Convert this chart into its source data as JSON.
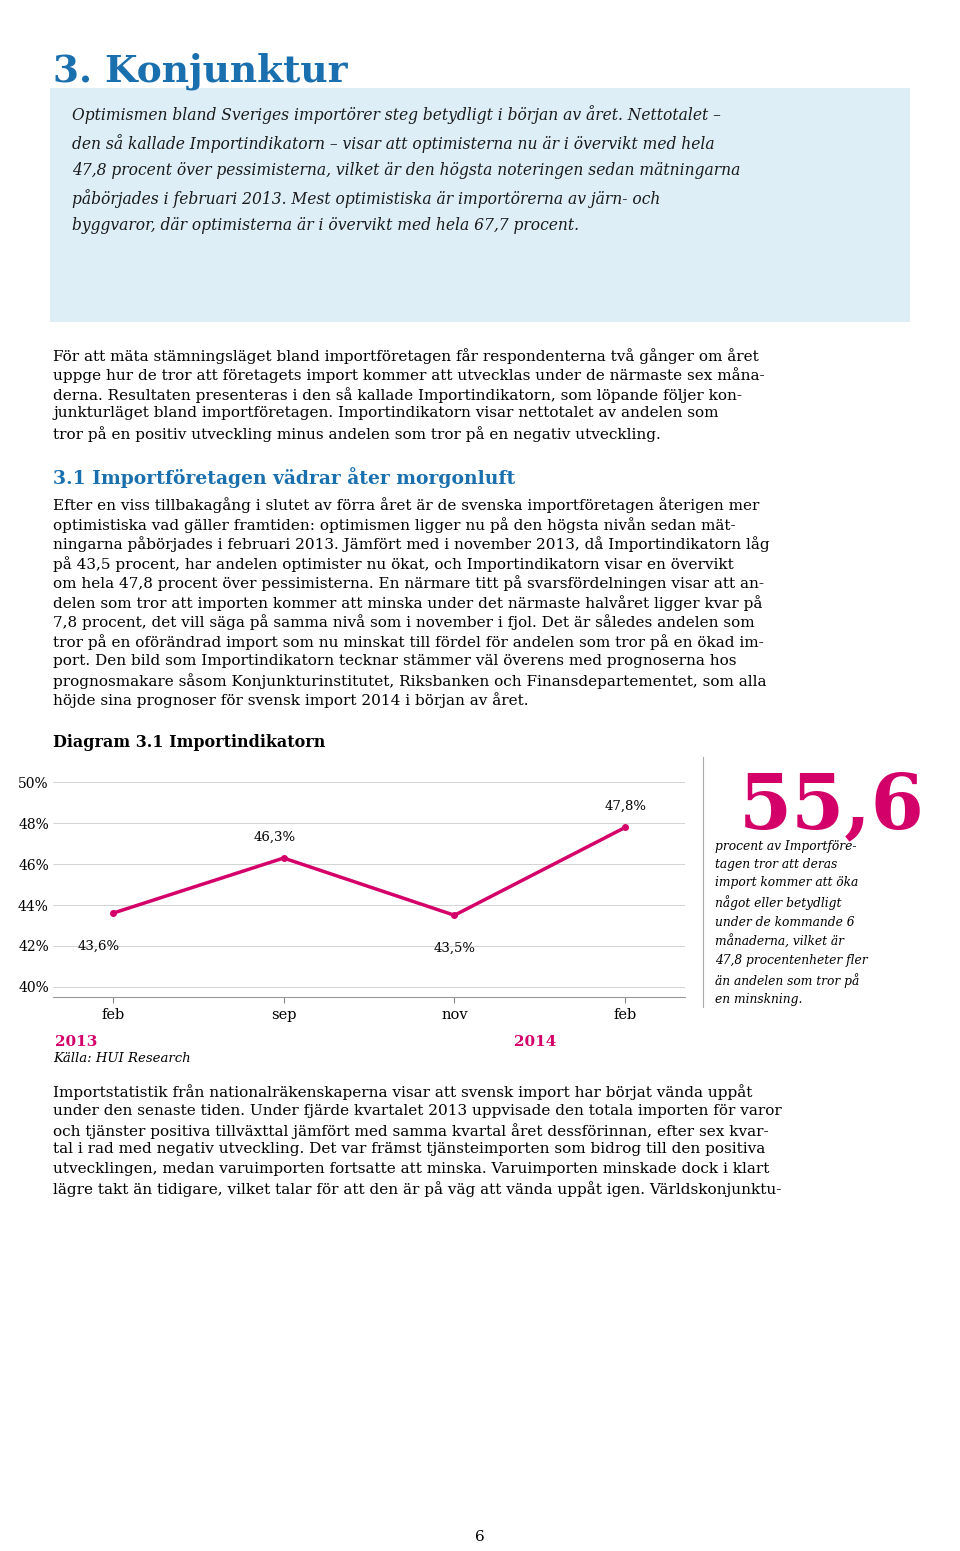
{
  "page_title": "3. Konjunktur",
  "page_title_color": "#1a6faf",
  "highlight_box_color": "#ddeef7",
  "highlight_text": "Optimismen bland Sveriges importörer steg betydligt i början av året. Nettotalet –\nden så kallade Importindikatorn – visar att optimisterna nu är i övervikt med hela\n47,8 procent över pessimisterna, vilket är den högsta noteringen sedan mätningarna\npåbörjades i februari 2013. Mest optimistiska är importörerna av järn- och\nbyggvaror, där optimisterna är i övervikt med hela 67,7 procent.",
  "body_text_1_lines": [
    "För att mäta stämningsläget bland importföretagen får respondenterna två gånger om året",
    "uppge hur de tror att företagets import kommer att utvecklas under de närmaste sex måna-",
    "derna. Resultaten presenteras i den så kallade Importindikatorn, som löpande följer kon-",
    "junkturläget bland importföretagen. Importindikatorn visar nettotalet av andelen som",
    "tror på en positiv utveckling minus andelen som tror på en negativ utveckling."
  ],
  "body_text_1_bold": [
    "Importindikatorn",
    "Importindikatorn"
  ],
  "section_title": "3.1 Importföretagen vädrar åter morgonluft",
  "section_title_color": "#1a6faf",
  "body_text_2_lines": [
    "Efter en viss tillbakagång i slutet av förra året är de svenska importföretagen återigen mer",
    "optimistiska vad gäller framtiden: optimismen ligger nu på den högsta nivån sedan mät-",
    "ningarna påbörjades i februari 2013. Jämfört med i november 2013, då Importindikatorn låg",
    "på 43,5 procent, har andelen optimister nu ökat, och Importindikatorn visar en övervikt",
    "om hela 47,8 procent över pessimisterna. En närmare titt på svarsfördelningen visar att an-",
    "delen som tror att importen kommer att minska under det närmaste halvåret ligger kvar på",
    "7,8 procent, det vill säga på samma nivå som i november i fjol. Det är således andelen som",
    "tror på en oförändrad import som nu minskat till fördel för andelen som tror på en ökad im-",
    "port. Den bild som Importindikatorn tecknar stämmer väl överens med prognoserna hos",
    "prognosmakare såsom Konjunkturinstitutet, Riksbanken och Finansdepartementet, som alla",
    "höjde sina prognoser för svensk import 2014 i början av året."
  ],
  "diagram_title": "Diagram 3.1 Importindikatorn",
  "x_labels": [
    "feb",
    "sep",
    "nov",
    "feb"
  ],
  "year_labels": [
    "2013",
    "2014"
  ],
  "year_label_color": "#d4006a",
  "y_values": [
    43.6,
    46.3,
    43.5,
    47.8
  ],
  "y_labels": [
    "40%",
    "42%",
    "44%",
    "46%",
    "48%",
    "50%"
  ],
  "y_ticks": [
    40,
    42,
    44,
    46,
    48,
    50
  ],
  "ylim": [
    39.5,
    51
  ],
  "line_color": "#d4006a",
  "data_labels": [
    "43,6%",
    "46,3%",
    "43,5%",
    "47,8%"
  ],
  "big_number": "55,6",
  "big_number_color": "#d4006a",
  "sidebar_text_lines": [
    "procent av Importföre-",
    "tagen tror att deras",
    "import kommer att öka",
    "något eller betydligt",
    "under de kommande 6",
    "månaderna, vilket är",
    "47,8 procentenheter fler",
    "än andelen som tror på",
    "en minskning."
  ],
  "source_text": "Källa: HUI Research",
  "body_text_3_lines": [
    "Importstatistik från nationalräkenskaperna visar att svensk import har börjat vända uppåt",
    "under den senaste tiden. Under fjärde kvartalet 2013 uppvisade den totala importen för varor",
    "och tjänster positiva tillväxttal jämfört med samma kvartal året dessförinnan, efter sex kvar-",
    "tal i rad med negativ utveckling. Det var främst tjänsteimporten som bidrog till den positiva",
    "utvecklingen, medan varuimporten fortsatte att minska. Varuimporten minskade dock i klart",
    "lägre takt än tidigare, vilket talar för att den är på väg att vända uppåt igen. Världskonjunktu-"
  ],
  "page_number": "6",
  "background_color": "#ffffff",
  "text_color": "#000000"
}
